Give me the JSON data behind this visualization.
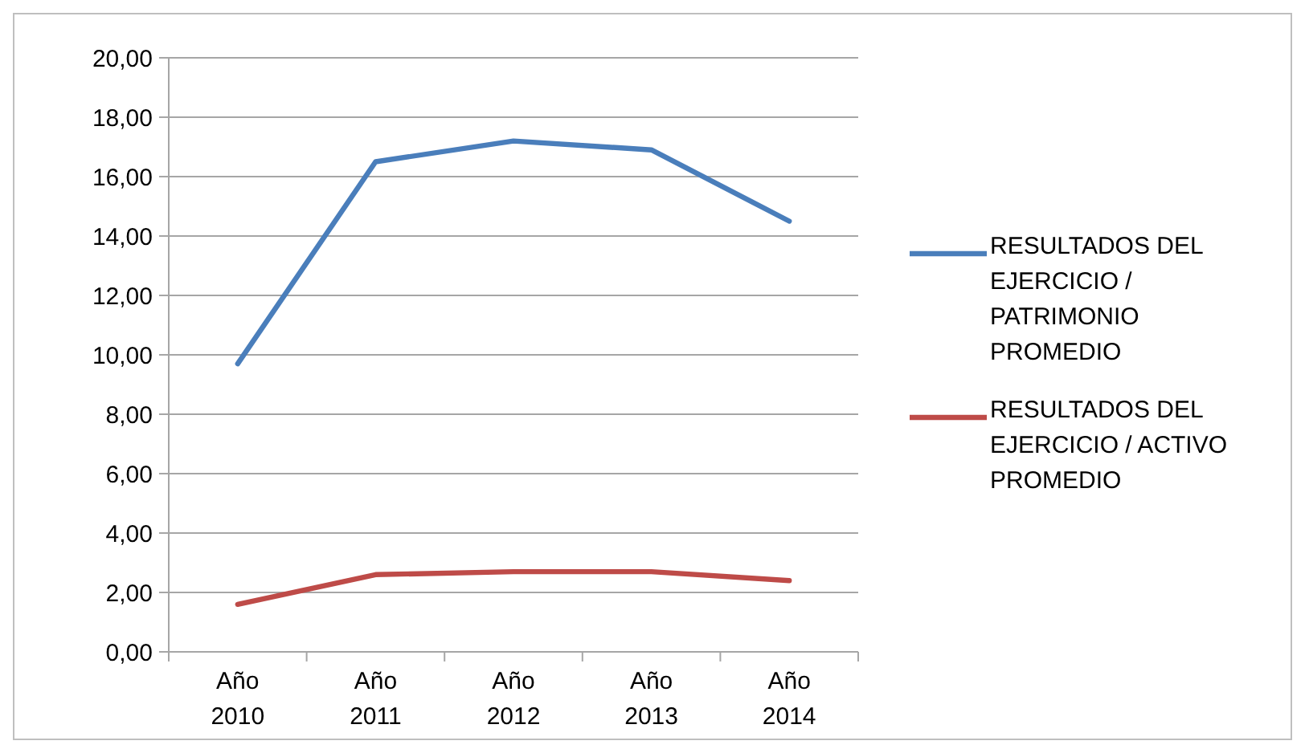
{
  "chart_data": {
    "type": "line",
    "categories": [
      "Año 2010",
      "Año 2011",
      "Año 2012",
      "Año 2013",
      "Año 2014"
    ],
    "series": [
      {
        "name": "RESULTADOS DEL EJERCICIO / PATRIMONIO PROMEDIO",
        "color": "#4a7ebb",
        "values": [
          9.7,
          16.5,
          17.2,
          16.9,
          14.5
        ]
      },
      {
        "name": "RESULTADOS DEL EJERCICIO / ACTIVO PROMEDIO",
        "color": "#be4b48",
        "values": [
          1.6,
          2.6,
          2.7,
          2.7,
          2.4
        ]
      }
    ],
    "ylim": [
      0,
      20
    ],
    "yticks": [
      {
        "value": 0,
        "label": "0,00"
      },
      {
        "value": 2,
        "label": "2,00"
      },
      {
        "value": 4,
        "label": "4,00"
      },
      {
        "value": 6,
        "label": "6,00"
      },
      {
        "value": 8,
        "label": "8,00"
      },
      {
        "value": 10,
        "label": "10,00"
      },
      {
        "value": 12,
        "label": "12,00"
      },
      {
        "value": 14,
        "label": "14,00"
      },
      {
        "value": 16,
        "label": "16,00"
      },
      {
        "value": 18,
        "label": "18,00"
      },
      {
        "value": 20,
        "label": "20,00"
      }
    ],
    "grid": "y",
    "legend": "right",
    "marker": "none",
    "line_style": "solid"
  }
}
